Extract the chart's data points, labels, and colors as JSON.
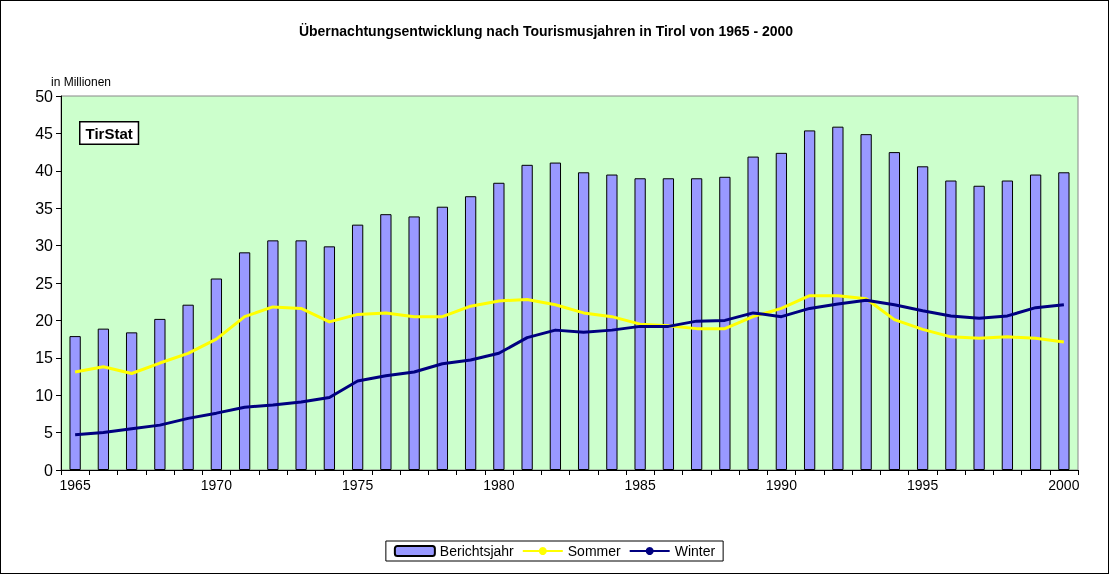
{
  "chart_data": {
    "type": "bar",
    "title": "Übernachtungsentwicklung nach Tourismusjahren in Tirol von 1965 - 2000",
    "ylabel": "in Millionen",
    "annotations": [
      "TirStat"
    ],
    "categories": [
      "1965",
      null,
      null,
      null,
      null,
      "1970",
      null,
      null,
      null,
      null,
      "1975",
      null,
      null,
      null,
      null,
      "1980",
      null,
      null,
      null,
      null,
      "1985",
      null,
      null,
      null,
      null,
      "1990",
      null,
      null,
      null,
      null,
      "1995",
      null,
      null,
      null,
      null,
      "2000"
    ],
    "series": [
      {
        "name": "Berichtsjahr",
        "color": "#9999ff",
        "values": [
          17.9,
          18.9,
          18.4,
          20.2,
          22.1,
          25.6,
          29.1,
          30.7,
          30.7,
          29.9,
          32.8,
          34.2,
          33.9,
          35.2,
          36.6,
          38.4,
          40.8,
          41.1,
          39.8,
          39.5,
          39.0,
          39.0,
          39.0,
          39.2,
          41.9,
          42.4,
          45.4,
          45.9,
          44.9,
          42.5,
          40.6,
          38.7,
          38.0,
          38.7,
          39.5,
          39.8
        ]
      },
      {
        "name": "Sommer",
        "type": "line",
        "color": "#ffff00",
        "values": [
          13.1,
          13.8,
          12.9,
          14.3,
          15.6,
          17.5,
          20.5,
          21.8,
          21.6,
          19.8,
          20.8,
          21.0,
          20.5,
          20.5,
          21.9,
          22.6,
          22.8,
          22.1,
          21.0,
          20.5,
          19.5,
          19.3,
          18.9,
          18.9,
          20.5,
          21.6,
          23.3,
          23.3,
          22.9,
          20.1,
          18.8,
          17.8,
          17.6,
          17.8,
          17.6,
          17.1
        ]
      },
      {
        "name": "Winter",
        "type": "line",
        "color": "#000080",
        "values": [
          4.7,
          5.0,
          5.5,
          6.0,
          6.9,
          7.6,
          8.4,
          8.7,
          9.1,
          9.7,
          11.9,
          12.6,
          13.1,
          14.2,
          14.7,
          15.6,
          17.7,
          18.7,
          18.4,
          18.7,
          19.2,
          19.2,
          19.9,
          20.0,
          21.0,
          20.5,
          21.6,
          22.2,
          22.7,
          22.1,
          21.3,
          20.6,
          20.3,
          20.6,
          21.7,
          22.1
        ]
      }
    ],
    "ylim": [
      0,
      50
    ],
    "yticks": [
      0,
      5,
      10,
      15,
      20,
      25,
      30,
      35,
      40,
      45,
      50
    ],
    "grid": false,
    "legend": "bottom",
    "marker": "none",
    "line_style": "solid"
  }
}
